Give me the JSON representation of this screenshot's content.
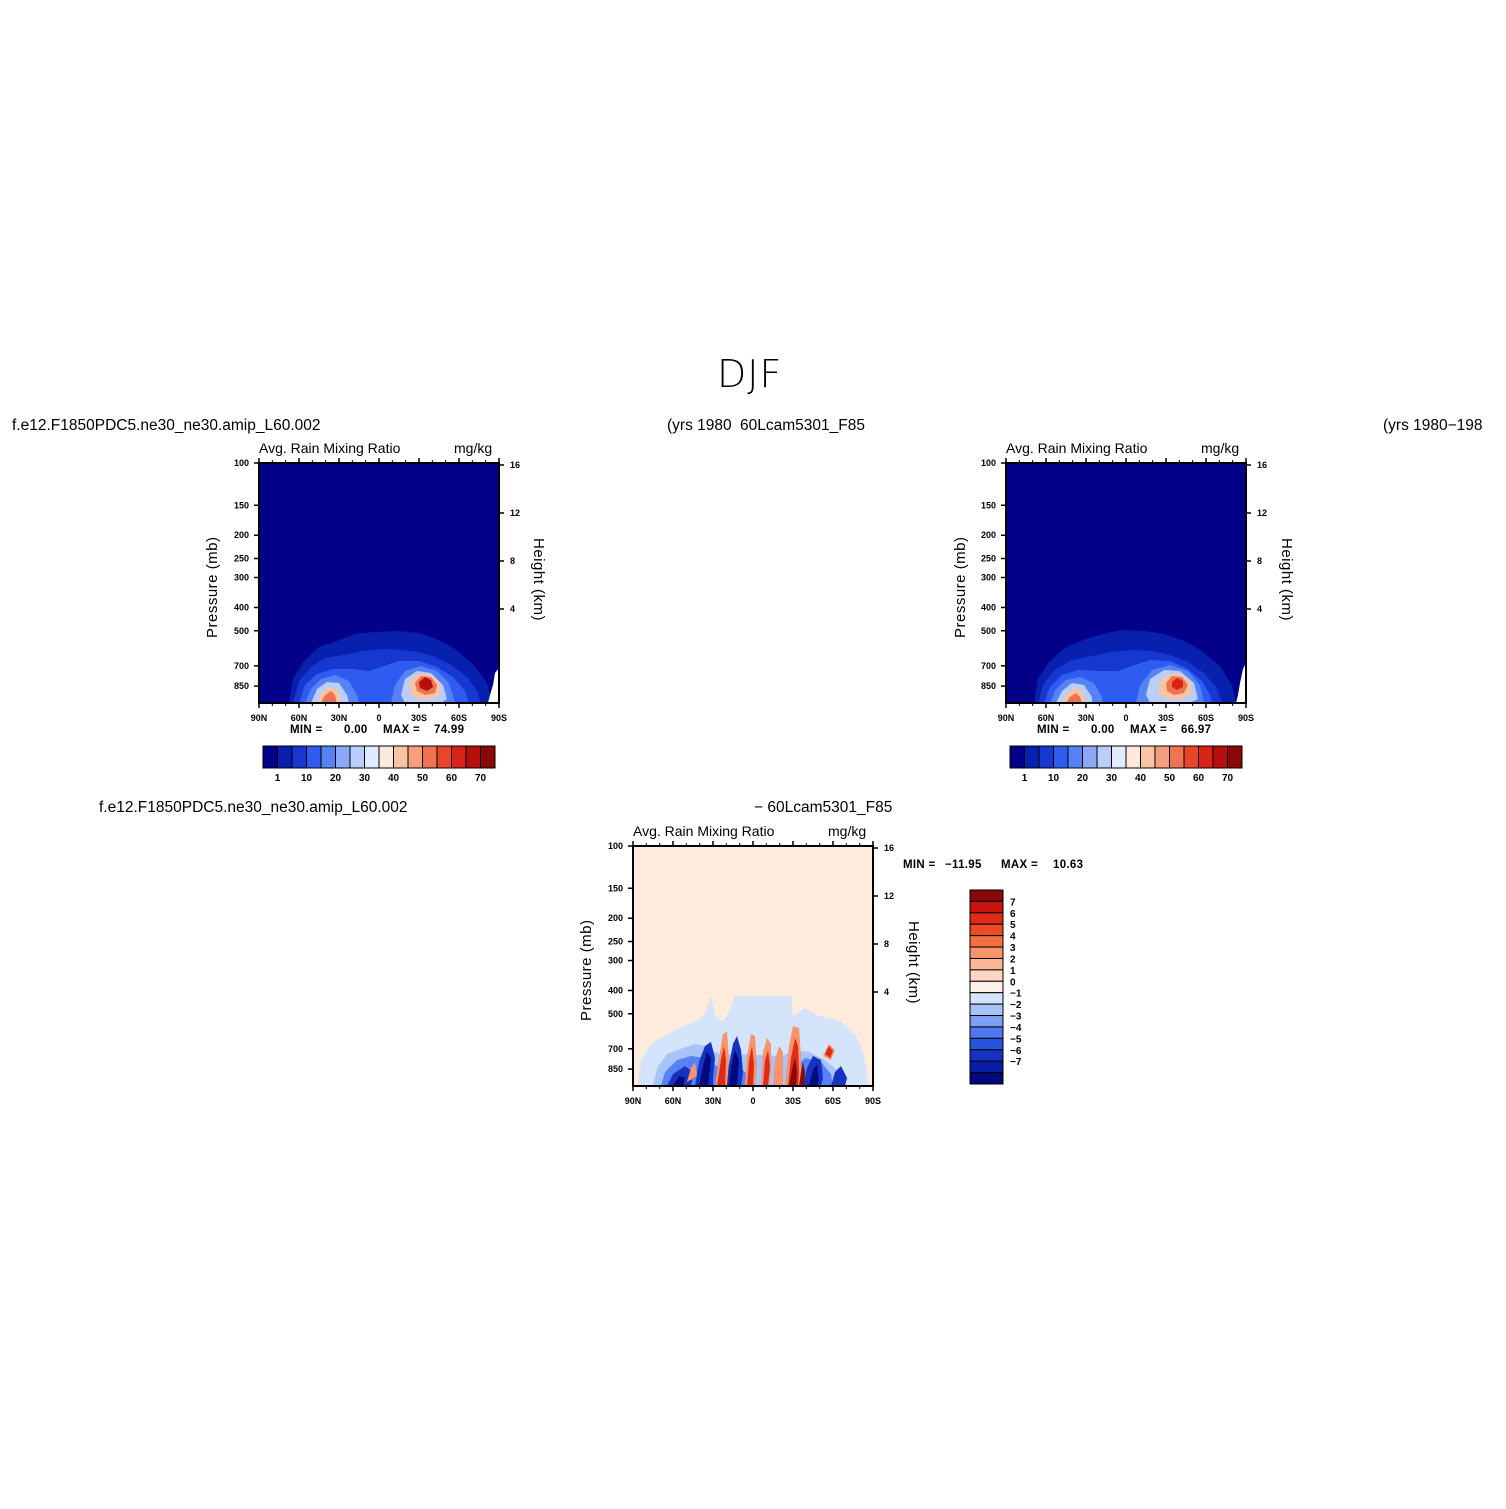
{
  "figure": {
    "title": "DJF",
    "top_left_case": "f.e12.F1850PDC5.ne30_ne30.amip_L60.002",
    "top_left_years": "(yrs 1980",
    "top_right_case": "60Lcam5301_F85",
    "top_right_years": "(yrs 1980−198",
    "diff_left_case": "f.e12.F1850PDC5.ne30_ne30.amip_L60.002",
    "diff_right_case": "− 60Lcam5301_F85"
  },
  "panels": {
    "p1": {
      "title": "Avg. Rain Mixing Ratio",
      "units": "mg/kg",
      "ylabel": "Pressure (mb)",
      "y2label": "Height (km)",
      "min_label": "MIN =",
      "min_value": "0.00",
      "max_label": "MAX =",
      "max_value": "74.99"
    },
    "p2": {
      "title": "Avg. Rain Mixing Ratio",
      "units": "mg/kg",
      "ylabel": "Pressure (mb)",
      "y2label": "Height (km)",
      "min_label": "MIN =",
      "min_value": "0.00",
      "max_label": "MAX =",
      "max_value": "66.97"
    },
    "p3": {
      "title": "Avg. Rain Mixing Ratio",
      "units": "mg/kg",
      "ylabel": "Pressure (mb)",
      "y2label": "Height (km)",
      "min_label": "MIN =",
      "min_value": "−11.95",
      "max_label": "MAX =",
      "max_value": "10.63"
    }
  },
  "chart_data": [
    {
      "type": "heatmap",
      "title": "Avg. Rain Mixing Ratio",
      "units": "mg/kg",
      "x_ticks": [
        "90N",
        "60N",
        "30N",
        "0",
        "30S",
        "60S",
        "90S"
      ],
      "y_ticks": [
        "100",
        "150",
        "200",
        "250",
        "300",
        "400",
        "500",
        "700",
        "850"
      ],
      "y2_ticks": [
        "16",
        "12",
        "8",
        "4"
      ],
      "ylabel": "Pressure (mb)",
      "y2label": "Height (km)",
      "min": 0.0,
      "max": 74.99,
      "colorbar_labels": [
        "1",
        "10",
        "20",
        "30",
        "40",
        "50",
        "60",
        "70"
      ],
      "colorbar_colors": [
        "#03018a",
        "#0720ad",
        "#1638d1",
        "#2e5cf0",
        "#5682f5",
        "#8aa9f7",
        "#b9cffa",
        "#dfeafc",
        "#fde9dc",
        "#f9c4a6",
        "#f59f7e",
        "#f07351",
        "#e8462b",
        "#d82417",
        "#b80f0c",
        "#8a0806"
      ],
      "colorbar_orientation": "horizontal"
    },
    {
      "type": "heatmap",
      "title": "Avg. Rain Mixing Ratio",
      "units": "mg/kg",
      "x_ticks": [
        "90N",
        "60N",
        "30N",
        "0",
        "30S",
        "60S",
        "90S"
      ],
      "y_ticks": [
        "100",
        "150",
        "200",
        "250",
        "300",
        "400",
        "500",
        "700",
        "850"
      ],
      "y2_ticks": [
        "16",
        "12",
        "8",
        "4"
      ],
      "ylabel": "Pressure (mb)",
      "y2label": "Height (km)",
      "min": 0.0,
      "max": 66.97,
      "colorbar_labels": [
        "1",
        "10",
        "20",
        "30",
        "40",
        "50",
        "60",
        "70"
      ],
      "colorbar_colors": [
        "#03018a",
        "#0720ad",
        "#1638d1",
        "#2e5cf0",
        "#5682f5",
        "#8aa9f7",
        "#b9cffa",
        "#dfeafc",
        "#fde9dc",
        "#f9c4a6",
        "#f59f7e",
        "#f07351",
        "#e8462b",
        "#d82417",
        "#b80f0c",
        "#8a0806"
      ],
      "colorbar_orientation": "horizontal"
    },
    {
      "type": "heatmap",
      "title": "Avg. Rain Mixing Ratio",
      "units": "mg/kg",
      "x_ticks": [
        "90N",
        "60N",
        "30N",
        "0",
        "30S",
        "60S",
        "90S"
      ],
      "y_ticks": [
        "100",
        "150",
        "200",
        "250",
        "300",
        "400",
        "500",
        "700",
        "850"
      ],
      "y2_ticks": [
        "16",
        "12",
        "8",
        "4"
      ],
      "ylabel": "Pressure (mb)",
      "y2label": "Height (km)",
      "min": -11.95,
      "max": 10.63,
      "colorbar_labels": [
        "7",
        "6",
        "5",
        "4",
        "3",
        "2",
        "1",
        "0",
        "−1",
        "−2",
        "−3",
        "−4",
        "−5",
        "−6",
        "−7"
      ],
      "colorbar_colors": [
        "#8a0806",
        "#c4150f",
        "#e02a18",
        "#ef4a28",
        "#f5703f",
        "#f8946a",
        "#fbb597",
        "#fdd6c2",
        "#fdf0e8",
        "#d4e4fa",
        "#a8c3f8",
        "#7d9ff5",
        "#4f78ef",
        "#2653e0",
        "#1532c2",
        "#0a1ca5",
        "#02087d"
      ],
      "colorbar_orientation": "vertical"
    }
  ]
}
